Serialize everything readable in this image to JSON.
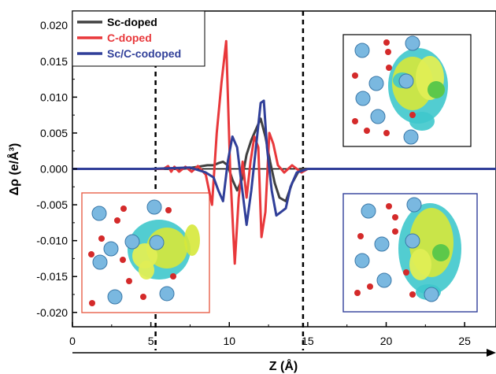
{
  "chart_data": {
    "type": "line",
    "xlabel": "Z (Å)",
    "ylabel": "Δρ (e/Å³)",
    "xlim": [
      0,
      27
    ],
    "ylim": [
      -0.022,
      0.022
    ],
    "x_ticks": [
      "0",
      "5",
      "10",
      "15",
      "20",
      "25"
    ],
    "y_ticks": [
      "-0.020",
      "-0.015",
      "-0.010",
      "-0.005",
      "0.000",
      "0.005",
      "0.010",
      "0.015",
      "0.020"
    ],
    "grid": false,
    "legend_position": "top-left",
    "interface_lines_x": [
      5.3,
      14.7
    ],
    "series": [
      {
        "name": "Sc-doped",
        "color": "#404040",
        "x": [
          0,
          5,
          7,
          8,
          8.6,
          9,
          9.3,
          9.6,
          9.9,
          10.2,
          10.5,
          10.8,
          11.1,
          11.4,
          11.7,
          12.0,
          12.3,
          12.6,
          12.9,
          13.2,
          13.6,
          14.0,
          14.5,
          16,
          27
        ],
        "y": [
          0,
          0,
          0,
          0.0003,
          0.0005,
          0.0005,
          0.0008,
          0.001,
          0.0005,
          -0.0015,
          -0.003,
          -0.0015,
          0.002,
          0.004,
          0.0055,
          0.007,
          0.0045,
          0.001,
          -0.002,
          -0.004,
          -0.0045,
          -0.002,
          0,
          0,
          0
        ]
      },
      {
        "name": "C-doped",
        "color": "#e8383b",
        "x": [
          0,
          5.8,
          6.1,
          6.3,
          6.5,
          6.8,
          7.2,
          7.6,
          8.0,
          8.5,
          8.9,
          9.2,
          9.5,
          9.8,
          10.05,
          10.35,
          10.6,
          10.85,
          11.1,
          11.35,
          11.6,
          11.85,
          12.05,
          12.3,
          12.55,
          12.8,
          13.1,
          13.5,
          14,
          14.6,
          15,
          27
        ],
        "y": [
          0,
          0,
          0.0004,
          -0.0004,
          0.0003,
          -0.0004,
          0.0003,
          -0.0004,
          0.0004,
          -0.0008,
          -0.005,
          0.005,
          0.012,
          0.0178,
          0,
          -0.0132,
          -0.004,
          0.001,
          -0.004,
          0.001,
          0.0045,
          0.003,
          -0.0095,
          -0.006,
          0.005,
          0.0035,
          0.0005,
          -0.0005,
          0.0005,
          -0.0005,
          0,
          0
        ]
      },
      {
        "name": "Sc/C-codoped",
        "color": "#303f99",
        "x": [
          0,
          5,
          7.5,
          8.5,
          9.0,
          9.3,
          9.6,
          9.9,
          10.2,
          10.5,
          10.8,
          11.1,
          11.4,
          11.7,
          12.0,
          12.2,
          12.4,
          12.7,
          13.0,
          13.3,
          13.6,
          13.9,
          14.3,
          15,
          27
        ],
        "y": [
          0,
          0,
          0.0002,
          -0.0005,
          -0.0012,
          -0.003,
          -0.0045,
          0.001,
          0.0045,
          0.003,
          -0.0025,
          -0.0078,
          -0.003,
          0.003,
          0.0092,
          0.0095,
          0.003,
          -0.003,
          -0.0065,
          -0.006,
          -0.0055,
          -0.0025,
          -0.0005,
          0,
          0
        ]
      }
    ]
  }
}
